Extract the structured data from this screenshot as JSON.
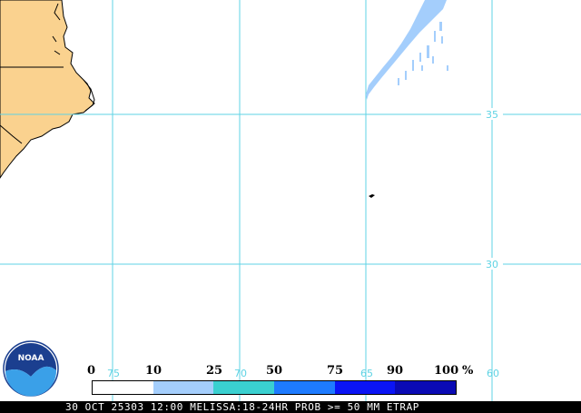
{
  "map": {
    "land_color": "#fad28f",
    "ocean_color": "#ffffff",
    "gridline_color": "#5fd3e4",
    "coastline_color": "#000000",
    "latitude_labels": [
      "35",
      "30"
    ],
    "longitude_labels": [
      "75",
      "70",
      "65",
      "60"
    ]
  },
  "legend": {
    "labels": [
      "0",
      "10",
      "25",
      "50",
      "75",
      "90",
      "100"
    ],
    "unit": "%",
    "colors": [
      "#ffffff",
      "#a4cefc",
      "#3ad0d0",
      "#1e7bff",
      "#0a14f5",
      "#0a0ab4"
    ]
  },
  "status_text": "30 OCT 25303 12:00 MELISSA:18-24HR PROB >= 50 MM ETRAP",
  "logo": {
    "text": "NOAA",
    "icon": "noaa-logo-icon"
  }
}
